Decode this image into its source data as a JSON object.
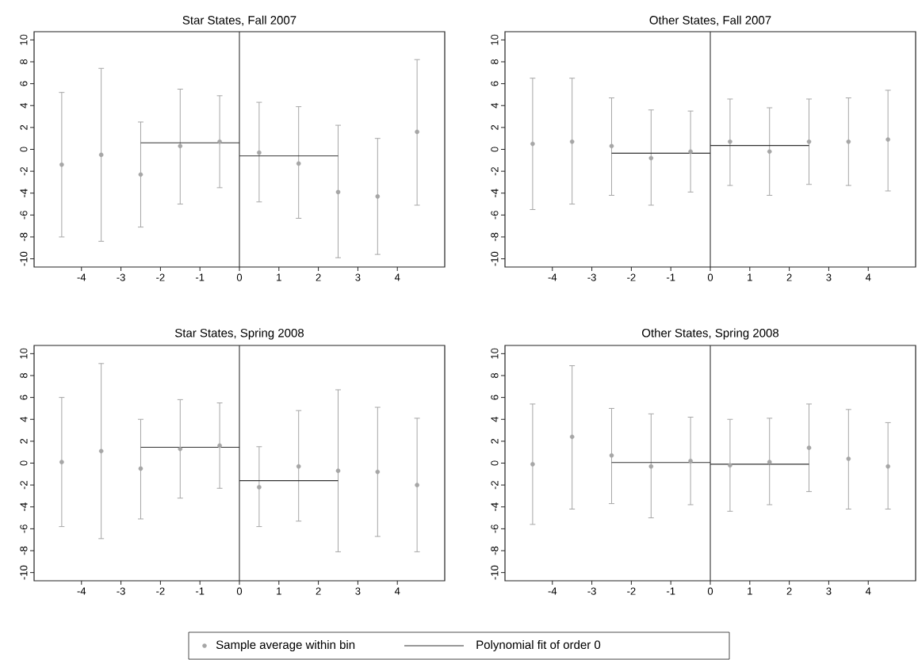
{
  "chart_data": [
    {
      "type": "scatter",
      "title": "Star States, Fall 2007",
      "xlim": [
        -5.2,
        5.2
      ],
      "ylim": [
        -10.75,
        10.75
      ],
      "xticks": [
        -4,
        -3,
        -2,
        -1,
        0,
        1,
        2,
        3,
        4
      ],
      "yticks": [
        -10,
        -8,
        -6,
        -4,
        -2,
        0,
        2,
        4,
        6,
        8,
        10
      ],
      "legend": "bottom",
      "ref_lines": [
        {
          "axis": "x",
          "value": 0,
          "color": "#333333"
        }
      ],
      "series": [
        {
          "name": "Sample average within bin",
          "marker": "circle",
          "color": "#a6a6a6",
          "x": [
            -4.5,
            -3.5,
            -2.5,
            -1.5,
            -0.5,
            0.5,
            1.5,
            2.5,
            3.5,
            4.5
          ],
          "values": [
            -1.4,
            -0.5,
            -2.3,
            0.3,
            0.7,
            -0.3,
            -1.3,
            -3.9,
            -4.3,
            1.6
          ],
          "errors": [
            [
              -8.0,
              5.2
            ],
            [
              -8.4,
              7.4
            ],
            [
              -7.1,
              2.5
            ],
            [
              -5.0,
              5.5
            ],
            [
              -3.5,
              4.9
            ],
            [
              -4.8,
              4.3
            ],
            [
              -6.3,
              3.9
            ],
            [
              -9.9,
              2.2
            ],
            [
              -9.6,
              1.0
            ],
            [
              -5.1,
              8.2
            ]
          ]
        },
        {
          "name": "Polynomial fit of order 0",
          "type": "line",
          "color": "#333333",
          "x": [
            -2.5,
            0
          ],
          "values": [
            0.6,
            0.6
          ]
        },
        {
          "type": "line",
          "color": "#333333",
          "x": [
            0,
            2.5
          ],
          "values": [
            -0.6,
            -0.6
          ]
        }
      ]
    },
    {
      "type": "scatter",
      "title": "Other States, Fall 2007",
      "xlim": [
        -5.2,
        5.2
      ],
      "ylim": [
        -10.75,
        10.75
      ],
      "xticks": [
        -4,
        -3,
        -2,
        -1,
        0,
        1,
        2,
        3,
        4
      ],
      "yticks": [
        -10,
        -8,
        -6,
        -4,
        -2,
        0,
        2,
        4,
        6,
        8,
        10
      ],
      "ref_lines": [
        {
          "axis": "x",
          "value": 0,
          "color": "#333333"
        }
      ],
      "series": [
        {
          "marker": "circle",
          "color": "#a6a6a6",
          "x": [
            -4.5,
            -3.5,
            -2.5,
            -1.5,
            -0.5,
            0.5,
            1.5,
            2.5,
            3.5,
            4.5
          ],
          "values": [
            0.5,
            0.7,
            0.3,
            -0.8,
            -0.2,
            0.7,
            -0.2,
            0.7,
            0.7,
            0.9
          ],
          "errors": [
            [
              -5.5,
              6.5
            ],
            [
              -5.0,
              6.5
            ],
            [
              -4.2,
              4.7
            ],
            [
              -5.1,
              3.6
            ],
            [
              -3.9,
              3.5
            ],
            [
              -3.3,
              4.6
            ],
            [
              -4.2,
              3.8
            ],
            [
              -3.2,
              4.6
            ],
            [
              -3.3,
              4.7
            ],
            [
              -3.8,
              5.4
            ]
          ]
        },
        {
          "type": "line",
          "color": "#333333",
          "x": [
            -2.5,
            0
          ],
          "values": [
            -0.35,
            -0.35
          ]
        },
        {
          "type": "line",
          "color": "#333333",
          "x": [
            0,
            2.5
          ],
          "values": [
            0.35,
            0.35
          ]
        }
      ]
    },
    {
      "type": "scatter",
      "title": "Star States, Spring 2008",
      "xlim": [
        -5.2,
        5.2
      ],
      "ylim": [
        -10.75,
        10.75
      ],
      "xticks": [
        -4,
        -3,
        -2,
        -1,
        0,
        1,
        2,
        3,
        4
      ],
      "yticks": [
        -10,
        -8,
        -6,
        -4,
        -2,
        0,
        2,
        4,
        6,
        8,
        10
      ],
      "ref_lines": [
        {
          "axis": "x",
          "value": 0,
          "color": "#333333"
        }
      ],
      "series": [
        {
          "marker": "circle",
          "color": "#a6a6a6",
          "x": [
            -4.5,
            -3.5,
            -2.5,
            -1.5,
            -0.5,
            0.5,
            1.5,
            2.5,
            3.5,
            4.5
          ],
          "values": [
            0.1,
            1.1,
            -0.5,
            1.3,
            1.6,
            -2.2,
            -0.3,
            -0.7,
            -0.8,
            -2.0
          ],
          "errors": [
            [
              -5.8,
              6.0
            ],
            [
              -6.9,
              9.1
            ],
            [
              -5.1,
              4.0
            ],
            [
              -3.2,
              5.8
            ],
            [
              -2.3,
              5.5
            ],
            [
              -5.8,
              1.5
            ],
            [
              -5.3,
              4.8
            ],
            [
              -8.1,
              6.7
            ],
            [
              -6.7,
              5.1
            ],
            [
              -8.1,
              4.1
            ]
          ]
        },
        {
          "type": "line",
          "color": "#333333",
          "x": [
            -2.5,
            0
          ],
          "values": [
            1.45,
            1.45
          ]
        },
        {
          "type": "line",
          "color": "#333333",
          "x": [
            0,
            2.5
          ],
          "values": [
            -1.6,
            -1.6
          ]
        }
      ]
    },
    {
      "type": "scatter",
      "title": "Other States, Spring 2008",
      "xlim": [
        -5.2,
        5.2
      ],
      "ylim": [
        -10.75,
        10.75
      ],
      "xticks": [
        -4,
        -3,
        -2,
        -1,
        0,
        1,
        2,
        3,
        4
      ],
      "yticks": [
        -10,
        -8,
        -6,
        -4,
        -2,
        0,
        2,
        4,
        6,
        8,
        10
      ],
      "ref_lines": [
        {
          "axis": "x",
          "value": 0,
          "color": "#333333"
        }
      ],
      "series": [
        {
          "marker": "circle",
          "color": "#a6a6a6",
          "x": [
            -4.5,
            -3.5,
            -2.5,
            -1.5,
            -0.5,
            0.5,
            1.5,
            2.5,
            3.5,
            4.5
          ],
          "values": [
            -0.1,
            2.4,
            0.7,
            -0.3,
            0.2,
            -0.2,
            0.1,
            1.4,
            0.4,
            -0.3
          ],
          "errors": [
            [
              -5.6,
              5.4
            ],
            [
              -4.2,
              8.9
            ],
            [
              -3.7,
              5.0
            ],
            [
              -5.0,
              4.5
            ],
            [
              -3.8,
              4.2
            ],
            [
              -4.4,
              4.0
            ],
            [
              -3.8,
              4.1
            ],
            [
              -2.6,
              5.4
            ],
            [
              -4.2,
              4.9
            ],
            [
              -4.2,
              3.7
            ]
          ]
        },
        {
          "type": "line",
          "color": "#333333",
          "x": [
            -2.5,
            0
          ],
          "values": [
            0.05,
            0.05
          ]
        },
        {
          "type": "line",
          "color": "#333333",
          "x": [
            0,
            2.5
          ],
          "values": [
            -0.1,
            -0.1
          ]
        }
      ]
    }
  ]
}
